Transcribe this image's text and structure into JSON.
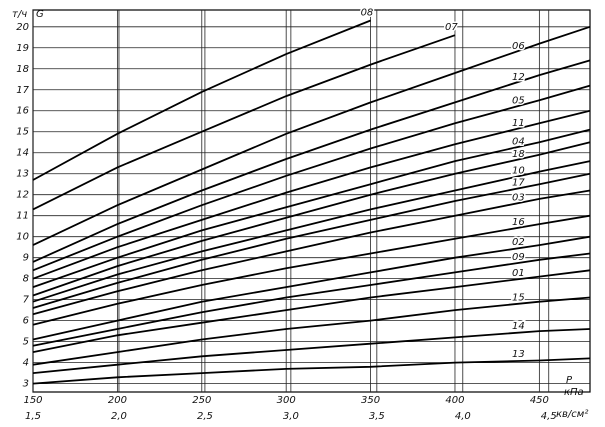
{
  "chart_data": {
    "type": "line",
    "y_unit": "т/ч",
    "y_label": "G",
    "x_label": "P",
    "x_unit": "кПа",
    "x2_unit": "кв/см²",
    "grid": true,
    "x": [
      150,
      200,
      250,
      300,
      350,
      400,
      450,
      480
    ],
    "xlim": [
      150,
      480
    ],
    "xticks": [
      150,
      200,
      250,
      300,
      350,
      400,
      450
    ],
    "x2lim": [
      1.5,
      4.74
    ],
    "x2ticks": [
      {
        "value": 1.5,
        "label": "1,5"
      },
      {
        "value": 2.0,
        "label": "2,0"
      },
      {
        "value": 2.5,
        "label": "2,5"
      },
      {
        "value": 3.0,
        "label": "3,0"
      },
      {
        "value": 3.5,
        "label": "3,5"
      },
      {
        "value": 4.0,
        "label": "4,0"
      },
      {
        "value": 4.5,
        "label": "4,5"
      }
    ],
    "ylim": [
      2.6,
      20.8
    ],
    "yticks": [
      3,
      4,
      5,
      6,
      7,
      8,
      9,
      10,
      11,
      12,
      13,
      14,
      15,
      16,
      17,
      18,
      19,
      20
    ],
    "series": [
      {
        "name": "08",
        "color": "#000",
        "values": [
          12.7,
          14.9,
          16.9,
          18.7,
          20.3,
          null,
          null,
          null
        ]
      },
      {
        "name": "07",
        "color": "#000",
        "values": [
          11.3,
          13.3,
          15.0,
          16.7,
          18.2,
          19.6,
          null,
          null
        ]
      },
      {
        "name": "06",
        "color": "#000",
        "values": [
          9.6,
          11.5,
          13.2,
          14.9,
          16.4,
          17.8,
          19.2,
          20.0
        ]
      },
      {
        "name": "12",
        "color": "#000",
        "values": [
          8.8,
          10.6,
          12.2,
          13.7,
          15.1,
          16.4,
          17.7,
          18.4
        ]
      },
      {
        "name": "05",
        "color": "#000",
        "values": [
          8.4,
          10.0,
          11.5,
          12.9,
          14.2,
          15.4,
          16.5,
          17.2
        ]
      },
      {
        "name": "11",
        "color": "#000",
        "values": [
          8.0,
          9.5,
          10.8,
          12.1,
          13.3,
          14.4,
          15.4,
          16.0
        ]
      },
      {
        "name": "04",
        "color": "#000",
        "values": [
          7.6,
          9.0,
          10.3,
          11.4,
          12.5,
          13.6,
          14.5,
          15.1
        ]
      },
      {
        "name": "18",
        "color": "#000",
        "values": [
          7.2,
          8.6,
          9.8,
          10.9,
          12.0,
          13.0,
          13.9,
          14.5
        ]
      },
      {
        "name": "10",
        "color": "#000",
        "values": [
          6.9,
          8.2,
          9.3,
          10.3,
          11.3,
          12.2,
          13.1,
          13.6
        ]
      },
      {
        "name": "17",
        "color": "#000",
        "values": [
          6.6,
          7.8,
          8.9,
          9.9,
          10.8,
          11.7,
          12.5,
          13.0
        ]
      },
      {
        "name": "03",
        "color": "#000",
        "values": [
          6.3,
          7.4,
          8.4,
          9.3,
          10.2,
          11.0,
          11.8,
          12.2
        ]
      },
      {
        "name": "16",
        "color": "#000",
        "values": [
          5.8,
          6.8,
          7.7,
          8.5,
          9.2,
          9.9,
          10.6,
          11.0
        ]
      },
      {
        "name": "02",
        "color": "#000",
        "values": [
          5.1,
          6.0,
          6.9,
          7.6,
          8.3,
          9.0,
          9.6,
          10.0
        ]
      },
      {
        "name": "09",
        "color": "#000",
        "values": [
          4.8,
          5.6,
          6.4,
          7.1,
          7.7,
          8.3,
          8.9,
          9.2
        ]
      },
      {
        "name": "01",
        "color": "#000",
        "values": [
          4.5,
          5.3,
          5.9,
          6.5,
          7.1,
          7.6,
          8.1,
          8.4
        ]
      },
      {
        "name": "15",
        "color": "#000",
        "values": [
          3.9,
          4.5,
          5.1,
          5.6,
          6.0,
          6.5,
          6.9,
          7.1
        ]
      },
      {
        "name": "14",
        "color": "#000",
        "values": [
          3.5,
          3.9,
          4.3,
          4.6,
          4.9,
          5.2,
          5.5,
          5.6
        ]
      },
      {
        "name": "13",
        "color": "#000",
        "values": [
          3.0,
          3.3,
          3.5,
          3.7,
          3.8,
          4.0,
          4.1,
          4.2
        ]
      }
    ]
  }
}
